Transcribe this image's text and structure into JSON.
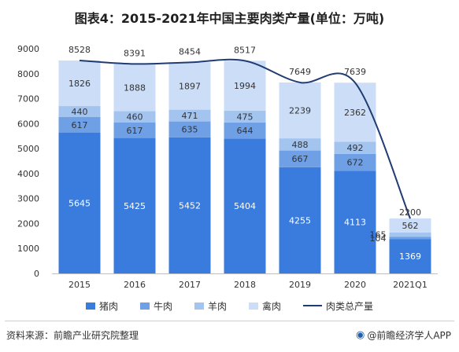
{
  "title": "图表4：2015-2021年中国主要肉类产量(单位：万吨)",
  "source": "资料来源：前瞻产业研究院整理",
  "brand": "@前瞻经济学人APP",
  "colors": {
    "pork": "#3A7BDE",
    "beef": "#6FA0E6",
    "mutton": "#A4C4F0",
    "poultry": "#CCDEF7",
    "total": "#1F3C73"
  },
  "chart_data": {
    "type": "bar",
    "stacked": true,
    "categories": [
      "2015",
      "2016",
      "2017",
      "2018",
      "2019",
      "2020",
      "2021Q1"
    ],
    "ylim": [
      0,
      9000
    ],
    "yticks": [
      0,
      1000,
      2000,
      3000,
      4000,
      5000,
      6000,
      7000,
      8000,
      9000
    ],
    "series": [
      {
        "name": "猪肉",
        "color_key": "pork",
        "values": [
          5645,
          5425,
          5452,
          5404,
          4255,
          4113,
          1369
        ]
      },
      {
        "name": "牛肉",
        "color_key": "beef",
        "values": [
          617,
          617,
          635,
          644,
          667,
          672,
          104
        ]
      },
      {
        "name": "羊肉",
        "color_key": "mutton",
        "values": [
          440,
          460,
          471,
          475,
          488,
          492,
          165
        ]
      },
      {
        "name": "禽肉",
        "color_key": "poultry",
        "values": [
          1826,
          1888,
          1897,
          1994,
          2239,
          2362,
          562
        ]
      }
    ],
    "line": {
      "name": "肉类总产量",
      "color_key": "total",
      "values": [
        8528,
        8391,
        8454,
        8517,
        7649,
        7639,
        2200
      ]
    },
    "legend_position": "bottom",
    "grid": false
  }
}
